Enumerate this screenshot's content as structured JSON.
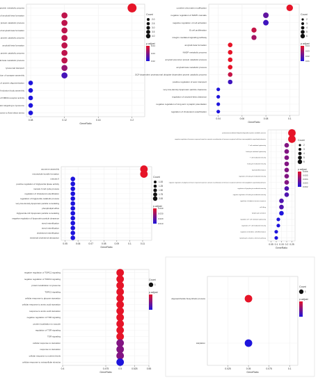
{
  "chart_data": [
    {
      "type": "scatter",
      "xlabel": "GeneRatio",
      "ticks": [
        0.08,
        0.12,
        0.16,
        0.2
      ],
      "xlim": [
        0.075,
        0.215
      ],
      "categories": [
        "amyloid precursor protein metabolic process",
        "negative regulation of amyloid-beta formation",
        "negative regulation of amyloid precursor protein catabolic process",
        "regulation of amyloid-beta formation",
        "regulation of amyloid precursor protein catabolic process",
        "amyloid-beta formation",
        "amyloid precursor protein catabolic process",
        "amyloid-beta metabolic process",
        "lysosomal transport",
        "regulation of synapse assembly",
        "negative regulation of protein oligomerization",
        "regulation of inclusion body assembly",
        "regulation of NMDA receptor activity",
        "protein targeting to lysosome",
        "cellular response to fluid shear stress"
      ],
      "values": [
        0.2,
        0.12,
        0.12,
        0.12,
        0.12,
        0.12,
        0.12,
        0.12,
        0.12,
        0.12,
        0.08,
        0.08,
        0.08,
        0.08,
        0.08
      ],
      "sizes": [
        5,
        3,
        3,
        3,
        3,
        3,
        3,
        3,
        3,
        3,
        2,
        2,
        2,
        2,
        2
      ],
      "padj": [
        0.02,
        0.025,
        0.025,
        0.025,
        0.025,
        0.025,
        0.025,
        0.025,
        0.03,
        0.04,
        0.045,
        0.045,
        0.045,
        0.045,
        0.045
      ],
      "padj_range": [
        0.02,
        0.045
      ],
      "count_title": "Count",
      "count_legend": [
        "2.0",
        "2.5",
        "3.0",
        "3.5",
        "4.0"
      ],
      "count_legend_sizes": [
        2,
        2.5,
        3,
        3.5,
        4
      ],
      "padj_title": "p.adjust",
      "padj_labels": [
        "0.04",
        "0.03",
        "0.02"
      ]
    },
    {
      "type": "scatter",
      "xlabel": "GeneRatio",
      "ticks": [
        0.04,
        0.06,
        0.08,
        0.1
      ],
      "xlim": [
        0.032,
        0.108
      ],
      "categories": [
        "covalent chromatin modification",
        "negative regulation of MAPK cascade",
        "negative regulation of cell activation",
        "B cell proliferation",
        "integrin-mediated signaling pathway",
        "amyloid-beta formation",
        "NADP metabolic process",
        "amyloid precursor protein catabolic process",
        "amyloid-beta metabolic process",
        "SCF-dependent proteasomal ubiquitin-dependent protein catabolic process",
        "positive regulation of axon transport",
        "very-low-density lipoprotein particle clearance",
        "regulation of amyloid-beta clearance",
        "negative regulation of long-term synaptic potentiation",
        "regulation of cholesterol esterification"
      ],
      "values": [
        0.1,
        0.08,
        0.08,
        0.07,
        0.07,
        0.05,
        0.05,
        0.05,
        0.05,
        0.05,
        0.05,
        0.04,
        0.04,
        0.04,
        0.04
      ],
      "sizes": [
        5,
        4,
        4,
        3.5,
        3.5,
        3,
        3,
        3,
        3,
        3,
        3,
        2,
        2,
        2,
        2
      ],
      "padj": [
        0.01,
        0.03,
        0.035,
        0.015,
        0.02,
        0.01,
        0.01,
        0.01,
        0.01,
        0.015,
        0.035,
        0.04,
        0.04,
        0.04,
        0.04
      ],
      "padj_range": [
        0.01,
        0.04
      ],
      "count_title": "Count",
      "count_legend": [
        "2",
        "3",
        "4",
        "5",
        "6"
      ],
      "count_legend_sizes": [
        2,
        3,
        4,
        5,
        6
      ],
      "padj_title": "p.adjust",
      "padj_labels": [
        "0.04",
        "0.03",
        "0.02",
        "0.01"
      ]
    },
    {
      "type": "scatter",
      "xlabel": "GeneRatio",
      "ticks": [
        0.05,
        0.06,
        0.07,
        0.08,
        0.09,
        0.1,
        0.11
      ],
      "xlim": [
        0.047,
        0.117
      ],
      "categories": [
        "axoneme assembly",
        "microtubule bundle formation",
        "meiosis II",
        "positive regulation of triglyceride lipase activity",
        "meiosis II cell cycle process",
        "regulation of cholesterol esterification",
        "regulation of triglyceride catabolic process",
        "very-low-density lipoprotein particle remodeling",
        "phospholipid efflux",
        "triglyceride-rich lipoprotein particle remodeling",
        "negative regulation of lipoprotein particle clearance",
        "sterol esterification",
        "sterol esterification",
        "cholesterol esterification",
        "intestinal cholesterol absorption"
      ],
      "values": [
        0.111,
        0.111,
        0.056,
        0.056,
        0.056,
        0.056,
        0.056,
        0.056,
        0.056,
        0.056,
        0.056,
        0.056,
        0.056,
        0.056,
        0.056
      ],
      "sizes": [
        2,
        2,
        1,
        1,
        1,
        1,
        1,
        1,
        1,
        1,
        1,
        1,
        1,
        1,
        1
      ],
      "padj": [
        0.01,
        0.01,
        0.045,
        0.045,
        0.045,
        0.045,
        0.045,
        0.045,
        0.045,
        0.045,
        0.045,
        0.045,
        0.045,
        0.045,
        0.045
      ],
      "padj_range": [
        0.01,
        0.045
      ],
      "count_title": "Count",
      "count_legend": [
        "1.00",
        "1.25",
        "1.50",
        "1.75",
        "2.00"
      ],
      "count_legend_sizes": [
        1,
        1.25,
        1.5,
        1.75,
        2
      ],
      "padj_title": "p.adjust",
      "padj_labels": [
        "0.040",
        "0.030",
        "0.020",
        "0.010"
      ]
    },
    {
      "type": "scatter",
      "xlabel": "GeneRatio",
      "ticks": [
        0.05,
        0.1,
        0.15,
        0.2,
        0.25
      ],
      "xlim": [
        0.02,
        0.28
      ],
      "categories": [
        "proteasome-mediated ubiquitin-dependent protein catabolic process",
        "negative regulation of immune response based on somatic recombination of immune receptors built from immunoglobulin superfamily domains",
        "T cell mediated cytotoxicity",
        "leukocyte mediated cytotoxicity",
        "T cell mediated immunity",
        "leukocyte mediated immunity",
        "myeloid differentiation",
        "regulation of leukocyte mediated immunity",
        "negative regulation of adaptive immune response based on somatic recombination of immune receptors built from immunoglobulin superfamily domains",
        "regulation of lymphocyte mediated immunity",
        "negative regulation of leukocyte mediated immunity",
        "regulation of adaptive immune response",
        "cell killing",
        "lymphocyte activation",
        "regulation of T cell mediated cytotoxicity",
        "regulation of T cell mediated immunity",
        "regulation of dendritic cell differentiation",
        "lymphocyte activation, alternate pathway"
      ],
      "values": [
        0.25,
        0.25,
        0.2,
        0.2,
        0.2,
        0.2,
        0.2,
        0.2,
        0.2,
        0.2,
        0.2,
        0.15,
        0.15,
        0.15,
        0.12,
        0.12,
        0.1,
        0.1
      ],
      "sizes": [
        6,
        6,
        3,
        3,
        3,
        3,
        3,
        3,
        3,
        3,
        3,
        3,
        3,
        3,
        2,
        2,
        2,
        2
      ],
      "padj": [
        0.002,
        0.002,
        0.004,
        0.004,
        0.004,
        0.004,
        0.004,
        0.004,
        0.004,
        0.005,
        0.005,
        0.005,
        0.005,
        0.006,
        0.006,
        0.006,
        0.006,
        0.006
      ],
      "padj_range": [
        0.002,
        0.006
      ],
      "count_title": "Count",
      "count_legend": [
        "2",
        "3",
        "4",
        "5",
        "6"
      ],
      "count_legend_sizes": [
        2,
        3,
        4,
        5,
        6
      ],
      "padj_title": "p.adjust",
      "padj_labels": [
        "0.006",
        "0.005",
        "0.004",
        "0.003",
        "0.002"
      ]
    },
    {
      "type": "scatter",
      "xlabel": "GeneRatio",
      "ticks": [
        0.4,
        0.475,
        0.5,
        0.525,
        0.55
      ],
      "xlim": [
        0.4,
        0.55
      ],
      "categories": [
        "negative regulation of TORC1 signaling",
        "negative regulation of TORC2 signaling",
        "protein localization to lysosome",
        "TORC1 signaling",
        "cellular response to glucose starvation",
        "cellular response to amino acid starvation",
        "response to amino acid starvation",
        "negative regulation of TOR signaling",
        "protein localization to vacuole",
        "regulation of TOR signaling",
        "TOR signaling",
        "cellular response to starvation",
        "response to starvation",
        "cellular response to nutrient levels",
        "cellular response to extracellular stimulus"
      ],
      "values": [
        0.5,
        0.5,
        0.5,
        0.5,
        0.5,
        0.5,
        0.5,
        0.5,
        0.5,
        0.5,
        0.5,
        0.5,
        0.5,
        0.5,
        0.5
      ],
      "sizes": [
        1,
        1,
        1,
        1,
        1,
        1,
        1,
        1,
        1,
        1,
        1,
        1,
        1,
        1,
        1
      ],
      "padj": [
        0.1,
        0.1,
        0.1,
        0.1,
        0.1,
        0.1,
        0.1,
        0.1,
        0.1,
        0.1,
        0.1,
        0.2,
        0.2,
        0.2,
        0.3
      ],
      "padj_range": [
        0.1,
        0.3
      ],
      "count_title": "Count",
      "count_legend": [
        "1"
      ],
      "count_legend_sizes": [
        1
      ],
      "padj_title": "p.adjust",
      "padj_labels": [
        ""
      ]
    },
    {
      "type": "scatter",
      "xlabel": "GeneRatio",
      "ticks": [
        0.025,
        0.05,
        0.075,
        0.1
      ],
      "xlim": [
        0.0,
        0.11
      ],
      "categories": [
        "oligosaccharide biosynthetic process",
        "sialylation"
      ],
      "values": [
        0.05,
        0.05
      ],
      "sizes": [
        1,
        1
      ],
      "padj": [
        0.0103,
        0.0106
      ],
      "padj_range": [
        0.0103,
        0.0106
      ],
      "count_title": "Count",
      "count_legend": [
        "1"
      ],
      "count_legend_sizes": [
        1
      ],
      "padj_title": "p.adjust",
      "padj_labels": [
        "",
        "",
        "",
        ""
      ]
    }
  ]
}
